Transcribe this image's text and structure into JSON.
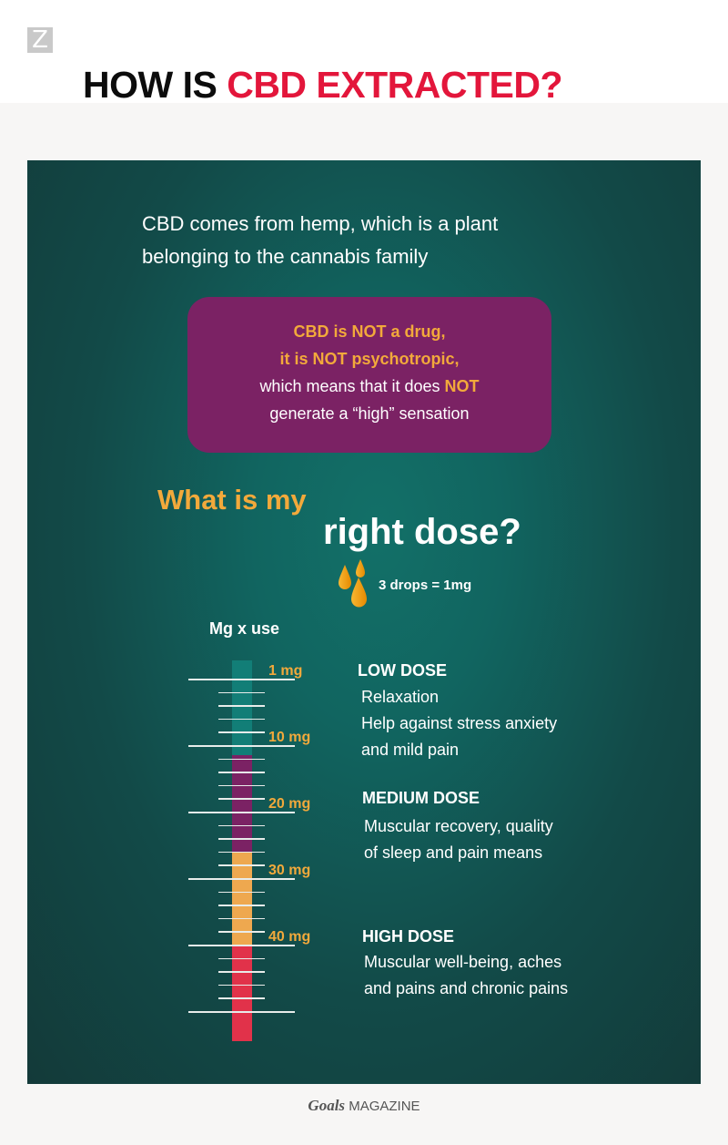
{
  "logo": "Z",
  "title": {
    "part1": "HOW IS ",
    "part2": "CBD EXTRACTED?"
  },
  "intro": "CBD comes from hemp, which is a plant belonging to the cannabis family",
  "callout": {
    "line1": "CBD is NOT a drug,",
    "line2": "it is NOT psychotropic,",
    "line3a": "which means that it does ",
    "line3b": "NOT",
    "line4": "generate a “high” sensation"
  },
  "question": {
    "part1": "What is my",
    "part2": "right dose?"
  },
  "drops_label": "3 drops = 1mg",
  "scale_title": "Mg x use",
  "scale": {
    "labels": [
      "1 mg",
      "10 mg",
      "20 mg",
      "30 mg",
      "40 mg"
    ],
    "segments": [
      {
        "name": "low",
        "color": "#127e77"
      },
      {
        "name": "medium",
        "color": "#7b2264"
      },
      {
        "name": "high-orange",
        "color": "#eea84f"
      },
      {
        "name": "high-red",
        "color": "#e1324a"
      }
    ]
  },
  "doses": [
    {
      "title": "LOW DOSE",
      "lines": [
        "Relaxation",
        "Help against stress anxiety",
        "and mild pain"
      ]
    },
    {
      "title": "MEDIUM DOSE",
      "lines": [
        "Muscular recovery, quality",
        "of sleep and pain means"
      ]
    },
    {
      "title": "HIGH DOSE",
      "lines": [
        "Muscular well-being, aches",
        "and pains and chronic pains"
      ]
    }
  ],
  "footer": {
    "brand": "Goals",
    "suffix": " MAGAZINE"
  }
}
